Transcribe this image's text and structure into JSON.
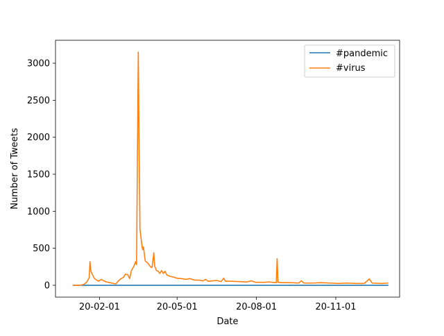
{
  "chart_data": {
    "type": "line",
    "title": "",
    "xlabel": "Date",
    "ylabel": "Number of Tweets",
    "xlim": [
      "2019-12-12",
      "2021-01-14"
    ],
    "ylim": [
      -160,
      3310
    ],
    "x_ticks": [
      {
        "date": "2020-02-01",
        "label": "20-02-01"
      },
      {
        "date": "2020-05-01",
        "label": "20-05-01"
      },
      {
        "date": "2020-08-01",
        "label": "20-08-01"
      },
      {
        "date": "2020-11-01",
        "label": "20-11-01"
      }
    ],
    "y_ticks": [
      0,
      500,
      1000,
      1500,
      2000,
      2500,
      3000
    ],
    "grid": false,
    "legend": {
      "position": "top-right"
    },
    "series": [
      {
        "name": "#pandemic",
        "color": "#1f77b4",
        "points": [
          [
            "2020-01-01",
            0
          ],
          [
            "2021-01-01",
            0
          ]
        ]
      },
      {
        "name": "#virus",
        "color": "#ff7f0e",
        "points": [
          [
            "2020-01-01",
            0
          ],
          [
            "2020-01-08",
            0
          ],
          [
            "2020-01-11",
            3
          ],
          [
            "2020-01-14",
            12
          ],
          [
            "2020-01-17",
            40
          ],
          [
            "2020-01-20",
            100
          ],
          [
            "2020-01-21",
            320
          ],
          [
            "2020-01-22",
            190
          ],
          [
            "2020-01-24",
            140
          ],
          [
            "2020-01-26",
            95
          ],
          [
            "2020-01-28",
            75
          ],
          [
            "2020-01-31",
            55
          ],
          [
            "2020-02-03",
            80
          ],
          [
            "2020-02-06",
            60
          ],
          [
            "2020-02-09",
            45
          ],
          [
            "2020-02-13",
            35
          ],
          [
            "2020-02-17",
            25
          ],
          [
            "2020-02-20",
            18
          ],
          [
            "2020-02-23",
            60
          ],
          [
            "2020-02-26",
            90
          ],
          [
            "2020-02-29",
            110
          ],
          [
            "2020-03-02",
            150
          ],
          [
            "2020-03-05",
            140
          ],
          [
            "2020-03-07",
            90
          ],
          [
            "2020-03-09",
            200
          ],
          [
            "2020-03-12",
            260
          ],
          [
            "2020-03-14",
            320
          ],
          [
            "2020-03-15",
            280
          ],
          [
            "2020-03-17",
            3150
          ],
          [
            "2020-03-18",
            1800
          ],
          [
            "2020-03-19",
            750
          ],
          [
            "2020-03-21",
            560
          ],
          [
            "2020-03-22",
            480
          ],
          [
            "2020-03-23",
            520
          ],
          [
            "2020-03-25",
            330
          ],
          [
            "2020-03-28",
            300
          ],
          [
            "2020-03-31",
            250
          ],
          [
            "2020-04-02",
            240
          ],
          [
            "2020-04-04",
            440
          ],
          [
            "2020-04-05",
            260
          ],
          [
            "2020-04-07",
            200
          ],
          [
            "2020-04-09",
            190
          ],
          [
            "2020-04-11",
            160
          ],
          [
            "2020-04-13",
            200
          ],
          [
            "2020-04-15",
            160
          ],
          [
            "2020-04-17",
            190
          ],
          [
            "2020-04-19",
            140
          ],
          [
            "2020-04-23",
            120
          ],
          [
            "2020-04-27",
            110
          ],
          [
            "2020-05-01",
            95
          ],
          [
            "2020-05-06",
            90
          ],
          [
            "2020-05-11",
            80
          ],
          [
            "2020-05-16",
            90
          ],
          [
            "2020-05-21",
            70
          ],
          [
            "2020-05-26",
            70
          ],
          [
            "2020-05-31",
            60
          ],
          [
            "2020-06-03",
            80
          ],
          [
            "2020-06-06",
            55
          ],
          [
            "2020-06-11",
            60
          ],
          [
            "2020-06-16",
            65
          ],
          [
            "2020-06-21",
            50
          ],
          [
            "2020-06-24",
            95
          ],
          [
            "2020-06-26",
            55
          ],
          [
            "2020-07-01",
            55
          ],
          [
            "2020-07-11",
            50
          ],
          [
            "2020-07-21",
            45
          ],
          [
            "2020-07-26",
            60
          ],
          [
            "2020-07-31",
            40
          ],
          [
            "2020-08-10",
            40
          ],
          [
            "2020-08-15",
            45
          ],
          [
            "2020-08-20",
            40
          ],
          [
            "2020-08-24",
            35
          ],
          [
            "2020-08-25",
            360
          ],
          [
            "2020-08-26",
            40
          ],
          [
            "2020-08-31",
            35
          ],
          [
            "2020-09-10",
            35
          ],
          [
            "2020-09-19",
            30
          ],
          [
            "2020-09-22",
            60
          ],
          [
            "2020-09-25",
            30
          ],
          [
            "2020-10-05",
            30
          ],
          [
            "2020-10-15",
            35
          ],
          [
            "2020-10-25",
            30
          ],
          [
            "2020-11-04",
            25
          ],
          [
            "2020-11-14",
            30
          ],
          [
            "2020-11-24",
            25
          ],
          [
            "2020-12-04",
            25
          ],
          [
            "2020-12-10",
            85
          ],
          [
            "2020-12-13",
            30
          ],
          [
            "2020-12-24",
            25
          ],
          [
            "2021-01-01",
            30
          ]
        ]
      }
    ]
  }
}
